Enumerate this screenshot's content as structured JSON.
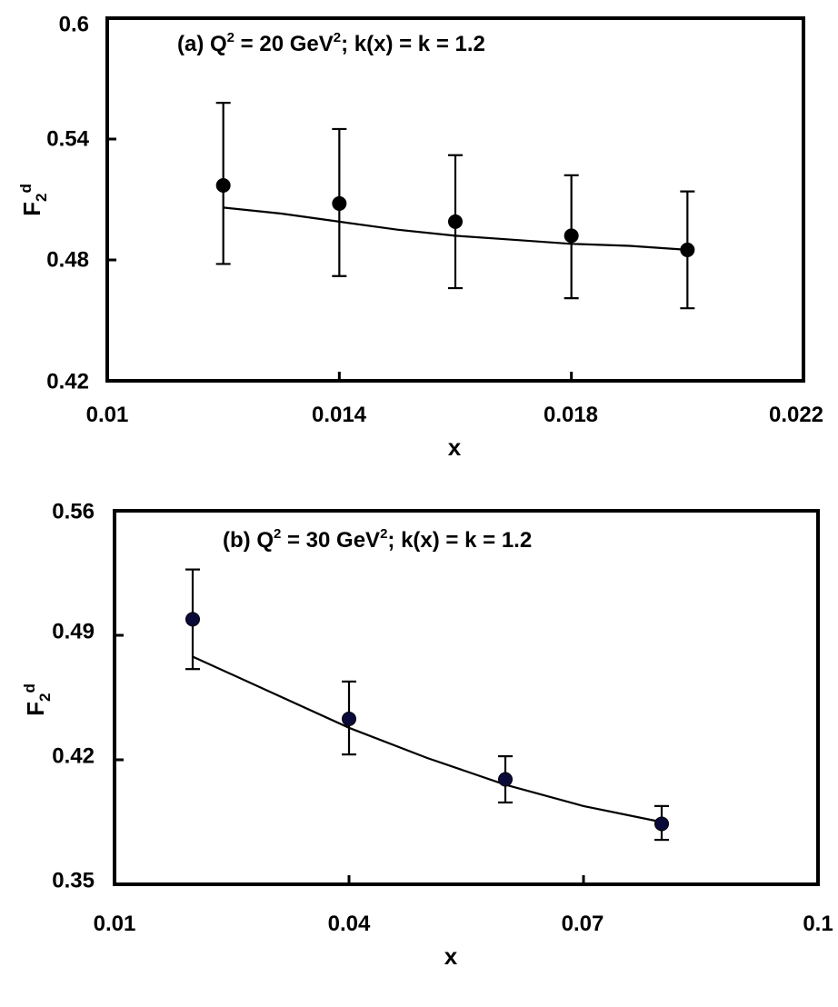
{
  "chart_data": [
    {
      "type": "scatter",
      "annotation": {
        "prefix": "(a) Q",
        "sup1": "2",
        "mid": " = 20 GeV",
        "sup2": "2",
        "suffix": "; k(x) = k = 1.2"
      },
      "xlabel": "x",
      "ylabel": {
        "main": "F",
        "sub": "2",
        "sup": "d"
      },
      "xlim": [
        0.01,
        0.022
      ],
      "ylim": [
        0.42,
        0.6
      ],
      "xticks": [
        0.01,
        0.014,
        0.018,
        0.022
      ],
      "yticks": [
        0.42,
        0.48,
        0.54,
        0.6
      ],
      "xtick_labels": [
        "0.01",
        "0.014",
        "0.018",
        "0.022"
      ],
      "ytick_labels": [
        "0.42",
        "0.48",
        "0.54",
        "0.6"
      ],
      "grid": false,
      "marker_color": "#000000",
      "points": [
        {
          "x": 0.012,
          "y": 0.517,
          "err_lo": 0.478,
          "err_hi": 0.558
        },
        {
          "x": 0.014,
          "y": 0.508,
          "err_lo": 0.472,
          "err_hi": 0.545
        },
        {
          "x": 0.016,
          "y": 0.499,
          "err_lo": 0.466,
          "err_hi": 0.532
        },
        {
          "x": 0.018,
          "y": 0.492,
          "err_lo": 0.461,
          "err_hi": 0.522
        },
        {
          "x": 0.02,
          "y": 0.485,
          "err_lo": 0.456,
          "err_hi": 0.514
        }
      ],
      "curve": {
        "x": [
          0.012,
          0.013,
          0.014,
          0.015,
          0.016,
          0.017,
          0.018,
          0.019,
          0.02
        ],
        "y": [
          0.506,
          0.503,
          0.499,
          0.495,
          0.492,
          0.49,
          0.488,
          0.487,
          0.485
        ]
      }
    },
    {
      "type": "scatter",
      "annotation": {
        "prefix": "(b) Q",
        "sup1": "2",
        "mid": " = 30 GeV",
        "sup2": "2",
        "suffix": "; k(x) = k = 1.2"
      },
      "xlabel": "x",
      "ylabel": {
        "main": "F",
        "sub": "2",
        "sup": "d"
      },
      "xlim": [
        0.01,
        0.1
      ],
      "ylim": [
        0.35,
        0.56
      ],
      "xticks": [
        0.01,
        0.04,
        0.07,
        0.1
      ],
      "yticks": [
        0.35,
        0.42,
        0.49,
        0.56
      ],
      "xtick_labels": [
        "0.01",
        "0.04",
        "0.07",
        "0.1"
      ],
      "ytick_labels": [
        "0.35",
        "0.42",
        "0.49",
        "0.56"
      ],
      "grid": false,
      "marker_color": "#0a0a3a",
      "points": [
        {
          "x": 0.02,
          "y": 0.499,
          "err_lo": 0.471,
          "err_hi": 0.527
        },
        {
          "x": 0.04,
          "y": 0.443,
          "err_lo": 0.423,
          "err_hi": 0.464
        },
        {
          "x": 0.06,
          "y": 0.409,
          "err_lo": 0.396,
          "err_hi": 0.422
        },
        {
          "x": 0.08,
          "y": 0.384,
          "err_lo": 0.375,
          "err_hi": 0.394
        }
      ],
      "curve": {
        "x": [
          0.02,
          0.03,
          0.04,
          0.05,
          0.06,
          0.07,
          0.08
        ],
        "y": [
          0.478,
          0.458,
          0.438,
          0.421,
          0.406,
          0.394,
          0.385
        ]
      }
    }
  ]
}
